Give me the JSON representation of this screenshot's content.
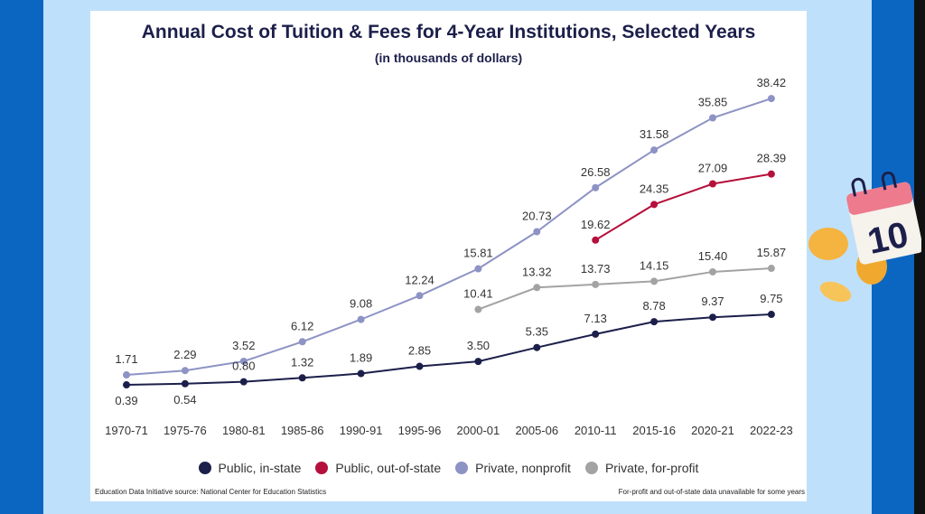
{
  "chart_data": {
    "type": "line",
    "title": "Annual Cost of Tuition & Fees for 4-Year Institutions, Selected Years",
    "subtitle": "(in thousands of dollars)",
    "categories": [
      "1970-71",
      "1975-76",
      "1980-81",
      "1985-86",
      "1990-91",
      "1995-96",
      "2000-01",
      "2005-06",
      "2010-11",
      "2015-16",
      "2020-21",
      "2022-23"
    ],
    "series": [
      {
        "name": "Public, in-state",
        "color": "#1c1f4a",
        "values": [
          0.39,
          0.54,
          0.8,
          1.32,
          1.89,
          2.85,
          3.5,
          5.35,
          7.13,
          8.78,
          9.37,
          9.75
        ]
      },
      {
        "name": "Public, out-of-state",
        "color": "#b5103c",
        "values": [
          null,
          null,
          null,
          null,
          null,
          null,
          null,
          null,
          19.62,
          24.35,
          27.09,
          28.39
        ]
      },
      {
        "name": "Private, nonprofit",
        "color": "#8d93c4",
        "values": [
          1.71,
          2.29,
          3.52,
          6.12,
          9.08,
          12.24,
          15.81,
          20.73,
          26.58,
          31.58,
          35.85,
          38.42
        ]
      },
      {
        "name": "Private, for-profit",
        "color": "#a3a3a3",
        "values": [
          null,
          null,
          null,
          null,
          null,
          null,
          10.41,
          13.32,
          13.73,
          14.15,
          15.4,
          15.87
        ]
      }
    ],
    "legend_position": "bottom",
    "grid": false,
    "data_labels": true
  },
  "footer": {
    "source": "Education Data Initiative source: National Center for Education Statistics",
    "note": "For-profit and out-of-state data unavailable for some years"
  },
  "decoration": {
    "calendar_number": "10",
    "icons": [
      "calendar-icon",
      "coin-icon"
    ]
  }
}
